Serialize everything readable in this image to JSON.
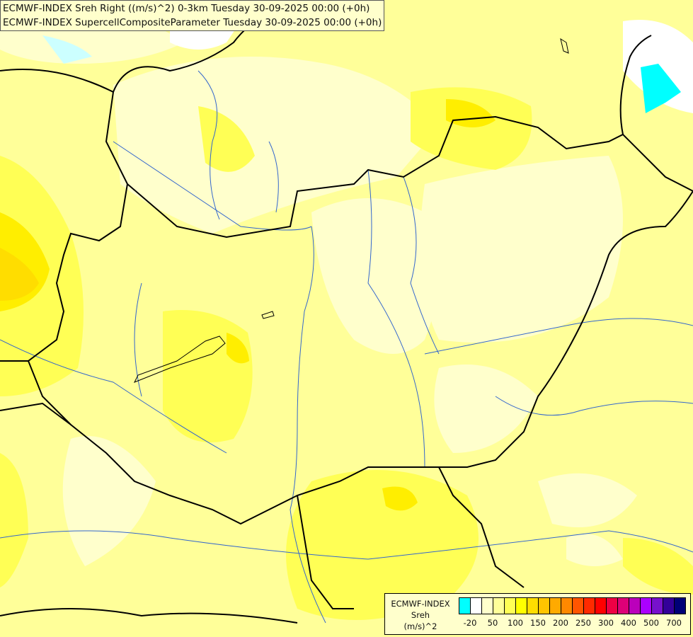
{
  "titles": [
    "ECMWF-INDEX Sreh Right ((m/s)^2) 0-3km Tuesday 30-09-2025 00:00 (+0h)",
    "ECMWF-INDEX SupercellCompositeParameter Tuesday 30-09-2025 00:00 (+0h)"
  ],
  "legend": {
    "lines": [
      "ECMWF-INDEX",
      "Sreh",
      "(m/s)^2"
    ],
    "colors": [
      "#00ffff",
      "#ffffff",
      "#ffffcc",
      "#ffff99",
      "#ffff55",
      "#ffff00",
      "#ffdd00",
      "#ffc400",
      "#ffaa00",
      "#ff8800",
      "#ff5500",
      "#ff2a00",
      "#ff0000",
      "#ee0044",
      "#dd0077",
      "#bb00bb",
      "#aa00ff",
      "#7711cc",
      "#330099",
      "#000077"
    ],
    "tick_labels": [
      "-20",
      "50",
      "100",
      "150",
      "200",
      "250",
      "300",
      "400",
      "500",
      "700"
    ]
  },
  "map": {
    "field_colors": {
      "base": "#ffff99",
      "pale": "#ffffcc",
      "mid": "#ffff55",
      "strong": "#ffee00",
      "max": "#ffdd00",
      "negative": "#00ffff",
      "white": "#ffffff"
    },
    "border_color": "#000000",
    "river_color": "#3366cc"
  }
}
